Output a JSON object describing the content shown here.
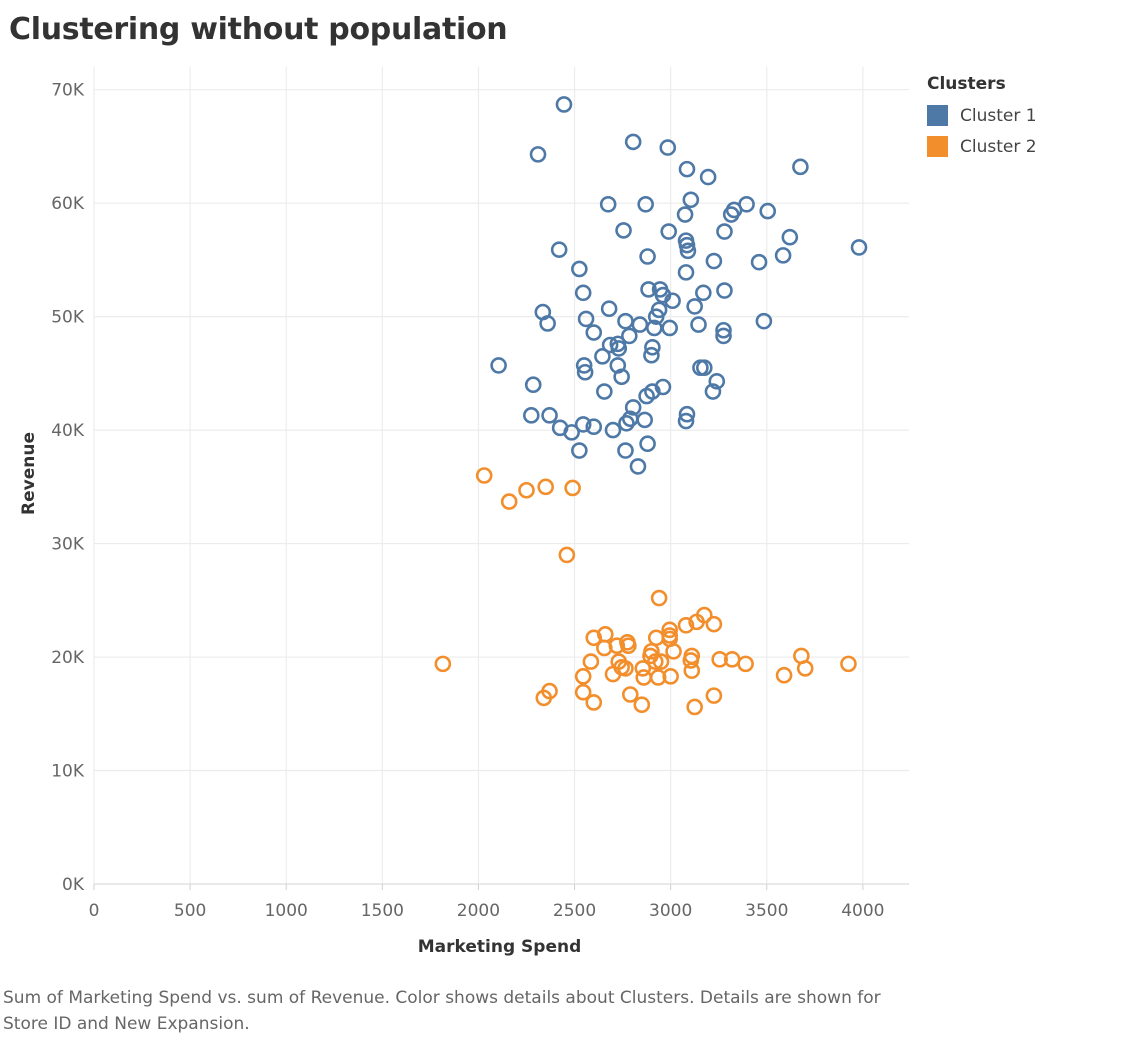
{
  "title": "Clustering without population",
  "caption": "Sum of Marketing Spend vs. sum of Revenue.  Color shows details about Clusters.  Details are shown for Store ID and New Expansion.",
  "chart_data": {
    "type": "scatter",
    "title": "Clustering without population",
    "xlabel": "Marketing Spend",
    "ylabel": "Revenue",
    "xlim": [
      0,
      4240
    ],
    "ylim": [
      0,
      72000
    ],
    "x_ticks": [
      0,
      500,
      1000,
      1500,
      2000,
      2500,
      3000,
      3500,
      4000
    ],
    "x_tick_labels": [
      "0",
      "500",
      "1000",
      "1500",
      "2000",
      "2500",
      "3000",
      "3500",
      "4000"
    ],
    "y_ticks": [
      0,
      10000,
      20000,
      30000,
      40000,
      50000,
      60000,
      70000
    ],
    "y_tick_labels": [
      "0K",
      "10K",
      "20K",
      "30K",
      "40K",
      "50K",
      "60K",
      "70K"
    ],
    "grid": true,
    "marker": "open-circle",
    "legend": {
      "title": "Clusters",
      "position": "top-right"
    },
    "series": [
      {
        "name": "Cluster 1",
        "color": "#4e79a7",
        "points": [
          [
            2445,
            68700
          ],
          [
            2310,
            64300
          ],
          [
            2805,
            65400
          ],
          [
            2985,
            64900
          ],
          [
            3085,
            63000
          ],
          [
            3195,
            62300
          ],
          [
            3675,
            63200
          ],
          [
            2675,
            59900
          ],
          [
            2870,
            59900
          ],
          [
            3105,
            60300
          ],
          [
            3075,
            59000
          ],
          [
            3315,
            59000
          ],
          [
            3330,
            59400
          ],
          [
            3395,
            59900
          ],
          [
            3505,
            59300
          ],
          [
            2755,
            57600
          ],
          [
            2990,
            57500
          ],
          [
            3080,
            56700
          ],
          [
            3085,
            56300
          ],
          [
            3090,
            55800
          ],
          [
            3280,
            57500
          ],
          [
            3620,
            57000
          ],
          [
            3980,
            56100
          ],
          [
            2420,
            55900
          ],
          [
            2880,
            55300
          ],
          [
            3225,
            54900
          ],
          [
            3460,
            54800
          ],
          [
            3585,
            55400
          ],
          [
            2525,
            54200
          ],
          [
            3080,
            53900
          ],
          [
            2545,
            52100
          ],
          [
            2885,
            52400
          ],
          [
            2945,
            52400
          ],
          [
            2960,
            51900
          ],
          [
            3010,
            51400
          ],
          [
            3170,
            52100
          ],
          [
            3280,
            52300
          ],
          [
            2680,
            50700
          ],
          [
            2940,
            50600
          ],
          [
            3125,
            50900
          ],
          [
            2335,
            50400
          ],
          [
            2360,
            49400
          ],
          [
            2560,
            49800
          ],
          [
            2765,
            49600
          ],
          [
            2840,
            49300
          ],
          [
            2915,
            49000
          ],
          [
            2995,
            49000
          ],
          [
            2925,
            50000
          ],
          [
            3145,
            49300
          ],
          [
            3275,
            48800
          ],
          [
            3275,
            48300
          ],
          [
            3485,
            49600
          ],
          [
            2600,
            48600
          ],
          [
            2785,
            48300
          ],
          [
            2725,
            47600
          ],
          [
            2730,
            47200
          ],
          [
            2905,
            47300
          ],
          [
            2900,
            46600
          ],
          [
            2645,
            46500
          ],
          [
            2685,
            47500
          ],
          [
            2105,
            45700
          ],
          [
            2550,
            45700
          ],
          [
            2555,
            45100
          ],
          [
            2725,
            45700
          ],
          [
            2745,
            44700
          ],
          [
            3155,
            45500
          ],
          [
            3175,
            45500
          ],
          [
            2285,
            44000
          ],
          [
            2655,
            43400
          ],
          [
            2875,
            43000
          ],
          [
            2905,
            43400
          ],
          [
            2960,
            43800
          ],
          [
            3240,
            44300
          ],
          [
            3220,
            43400
          ],
          [
            2805,
            42000
          ],
          [
            2790,
            41000
          ],
          [
            2770,
            40600
          ],
          [
            2865,
            40900
          ],
          [
            3085,
            41400
          ],
          [
            3080,
            40800
          ],
          [
            2275,
            41300
          ],
          [
            2370,
            41300
          ],
          [
            2425,
            40200
          ],
          [
            2485,
            39800
          ],
          [
            2545,
            40500
          ],
          [
            2600,
            40300
          ],
          [
            2700,
            40000
          ],
          [
            2880,
            38800
          ],
          [
            2765,
            38200
          ],
          [
            2525,
            38200
          ],
          [
            2830,
            36800
          ]
        ]
      },
      {
        "name": "Cluster 2",
        "color": "#f28e2b",
        "points": [
          [
            2030,
            36000
          ],
          [
            2160,
            33700
          ],
          [
            2250,
            34700
          ],
          [
            2350,
            35000
          ],
          [
            2490,
            34900
          ],
          [
            2460,
            29000
          ],
          [
            2940,
            25200
          ],
          [
            3175,
            23700
          ],
          [
            3135,
            23100
          ],
          [
            3080,
            22800
          ],
          [
            3225,
            22900
          ],
          [
            2995,
            22400
          ],
          [
            2995,
            21900
          ],
          [
            2925,
            21700
          ],
          [
            2995,
            21600
          ],
          [
            2660,
            22000
          ],
          [
            2600,
            21700
          ],
          [
            2775,
            21300
          ],
          [
            2780,
            21000
          ],
          [
            2720,
            21000
          ],
          [
            2655,
            20800
          ],
          [
            2900,
            20500
          ],
          [
            3015,
            20500
          ],
          [
            3110,
            20100
          ],
          [
            2895,
            20100
          ],
          [
            3680,
            20100
          ],
          [
            1815,
            19400
          ],
          [
            2585,
            19600
          ],
          [
            2730,
            19600
          ],
          [
            2745,
            19100
          ],
          [
            2765,
            19000
          ],
          [
            2855,
            19000
          ],
          [
            2920,
            19600
          ],
          [
            2950,
            19600
          ],
          [
            3105,
            19700
          ],
          [
            3255,
            19800
          ],
          [
            3320,
            19800
          ],
          [
            3390,
            19400
          ],
          [
            3700,
            19000
          ],
          [
            3925,
            19400
          ],
          [
            3110,
            18800
          ],
          [
            2700,
            18500
          ],
          [
            2545,
            18300
          ],
          [
            2860,
            18200
          ],
          [
            2935,
            18200
          ],
          [
            3000,
            18300
          ],
          [
            3590,
            18400
          ],
          [
            2370,
            17000
          ],
          [
            2545,
            16900
          ],
          [
            2340,
            16400
          ],
          [
            2600,
            16000
          ],
          [
            2790,
            16700
          ],
          [
            2850,
            15800
          ],
          [
            3125,
            15600
          ],
          [
            3225,
            16600
          ]
        ]
      }
    ]
  }
}
